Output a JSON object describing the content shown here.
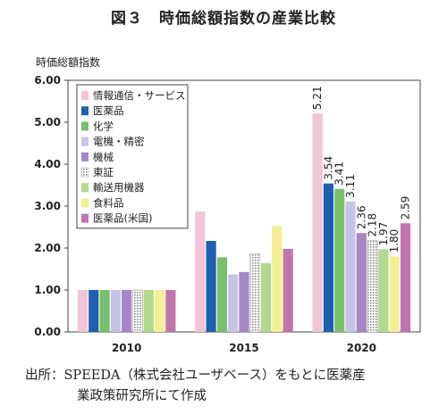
{
  "figure": {
    "title": "図３　時価総額指数の産業比較",
    "source_line1": "出所：SPEEDA（株式会社ユーザベース）をもとに医薬産",
    "source_line2": "業政策研究所にて作成"
  },
  "chart_data": {
    "type": "bar",
    "title": "図３　時価総額指数の産業比較",
    "xlabel": "",
    "ylabel": "時価総額指数",
    "ylim": [
      0,
      6
    ],
    "yticks": [
      "0.00",
      "1.00",
      "2.00",
      "3.00",
      "4.00",
      "5.00",
      "6.00"
    ],
    "categories": [
      "2010",
      "2015",
      "2020"
    ],
    "grid": false,
    "legend_position": "top-left",
    "series": [
      {
        "name": "情報通信・サービス",
        "color": "#f2c4d8",
        "pattern": "solid",
        "values": [
          1.0,
          2.87,
          5.21
        ],
        "labels": [
          "",
          "",
          "5.21"
        ]
      },
      {
        "name": "医薬品",
        "color": "#1f5fb0",
        "pattern": "solid",
        "values": [
          1.0,
          2.17,
          3.54
        ],
        "labels": [
          "",
          "",
          "3.54"
        ]
      },
      {
        "name": "化学",
        "color": "#79bf6c",
        "pattern": "solid",
        "values": [
          1.0,
          1.78,
          3.41
        ],
        "labels": [
          "",
          "",
          "3.41"
        ]
      },
      {
        "name": "電機・精密",
        "color": "#c6c4e6",
        "pattern": "solid",
        "values": [
          1.0,
          1.37,
          3.11
        ],
        "labels": [
          "",
          "",
          "3.11"
        ]
      },
      {
        "name": "機械",
        "color": "#a786c8",
        "pattern": "solid",
        "values": [
          1.0,
          1.43,
          2.36
        ],
        "labels": [
          "",
          "",
          "2.36"
        ]
      },
      {
        "name": "東証",
        "color": "#9a9a9a",
        "pattern": "dots",
        "values": [
          1.0,
          1.87,
          2.18
        ],
        "labels": [
          "",
          "",
          "2.18"
        ]
      },
      {
        "name": "輸送用機器",
        "color": "#b2d98c",
        "pattern": "solid",
        "values": [
          1.0,
          1.64,
          1.97
        ],
        "labels": [
          "",
          "",
          "1.97"
        ]
      },
      {
        "name": "食料品",
        "color": "#f4ef92",
        "pattern": "solid",
        "values": [
          1.0,
          2.52,
          1.8
        ],
        "labels": [
          "",
          "",
          "1.80"
        ]
      },
      {
        "name": "医薬品(米国)",
        "color": "#c174ae",
        "pattern": "solid",
        "values": [
          1.0,
          1.98,
          2.59
        ],
        "labels": [
          "",
          "",
          "2.59"
        ]
      }
    ]
  }
}
